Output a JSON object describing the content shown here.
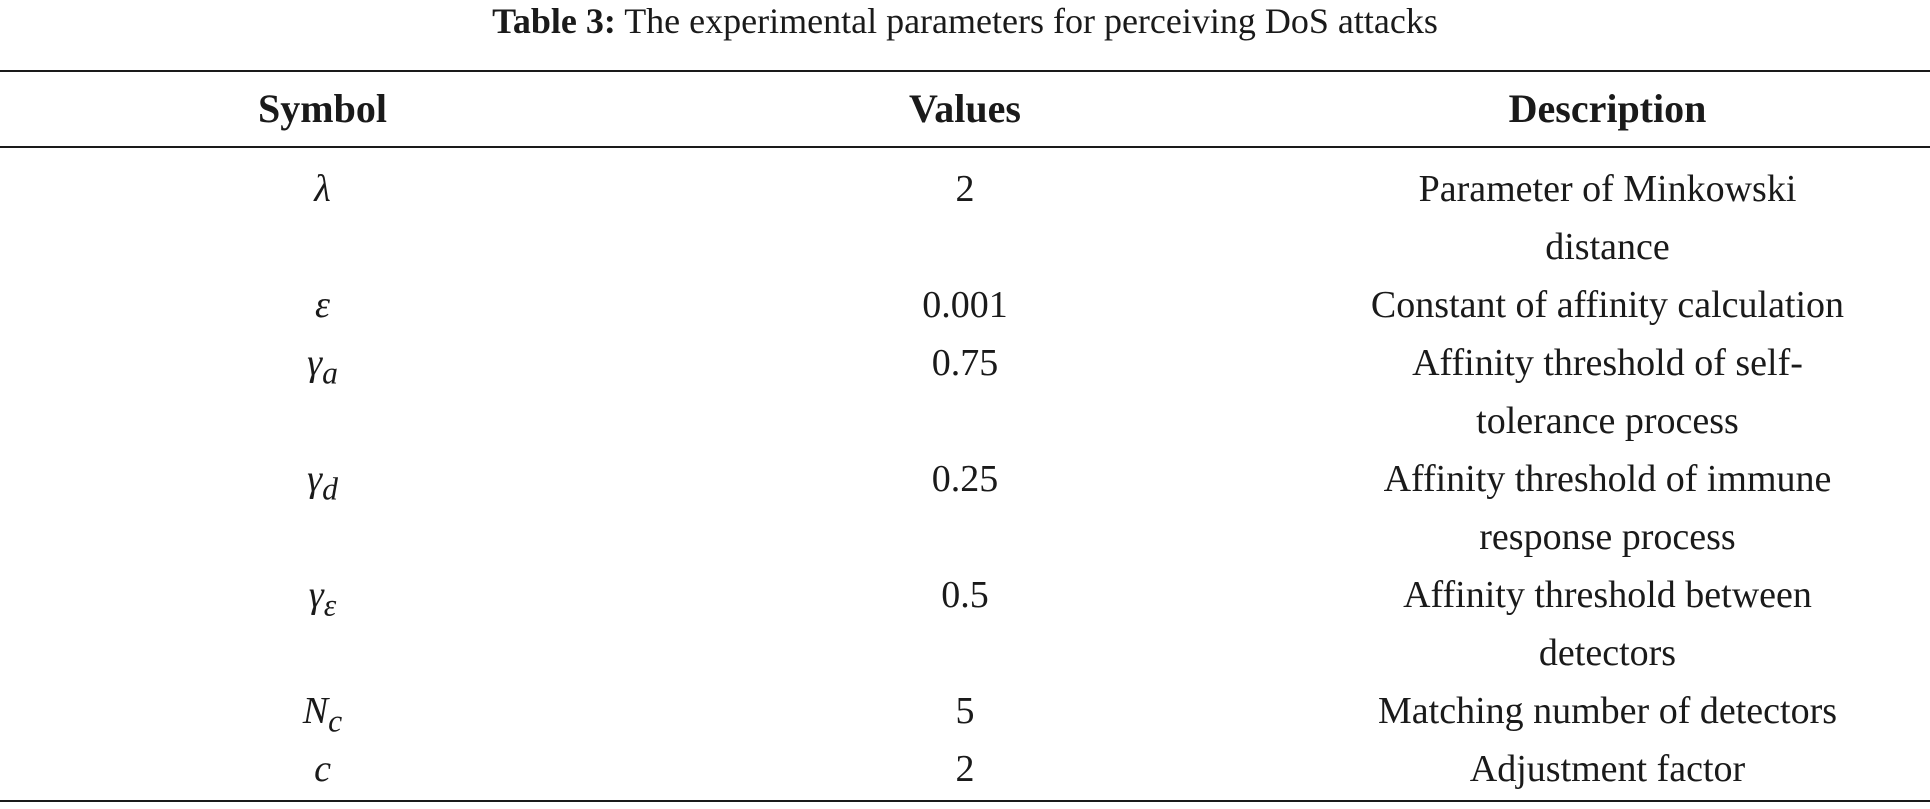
{
  "caption": {
    "label": "Table 3:",
    "text": " The experimental parameters for perceiving DoS attacks"
  },
  "table": {
    "headers": {
      "symbol": "Symbol",
      "values": "Values",
      "description": "Description"
    },
    "rows": [
      {
        "symbol": "λ",
        "symbol_sub": "",
        "value": "2",
        "description": "Parameter of Minkowski distance"
      },
      {
        "symbol": "ε",
        "symbol_sub": "",
        "value": "0.001",
        "description": "Constant of affinity calculation"
      },
      {
        "symbol": "γ",
        "symbol_sub": "a",
        "value": "0.75",
        "description": "Affinity threshold of self-tolerance process"
      },
      {
        "symbol": "γ",
        "symbol_sub": "d",
        "value": "0.25",
        "description": "Affinity threshold of immune response process"
      },
      {
        "symbol": "γ",
        "symbol_sub": "ε",
        "value": "0.5",
        "description": "Affinity threshold between detectors"
      },
      {
        "symbol": "N",
        "symbol_sub": "c",
        "value": "5",
        "description": "Matching number of detectors"
      },
      {
        "symbol": "c",
        "symbol_sub": "",
        "value": "2",
        "description": "Adjustment factor"
      }
    ]
  }
}
